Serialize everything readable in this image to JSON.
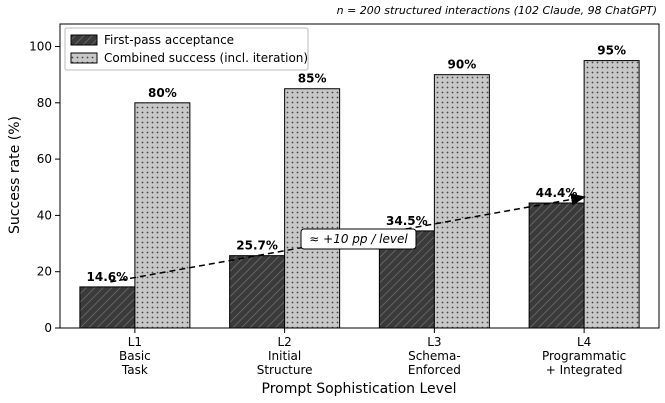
{
  "chart_data": {
    "type": "bar",
    "annotation_top": "n = 200 structured interactions (102 Claude, 98 ChatGPT)",
    "xlabel": "Prompt Sophistication Level",
    "ylabel": "Success rate (%)",
    "ylim": [
      0,
      108
    ],
    "yticks": [
      0,
      20,
      40,
      60,
      80,
      100
    ],
    "categories": [
      [
        "L1",
        "Basic",
        "Task"
      ],
      [
        "L2",
        "Initial",
        "Structure"
      ],
      [
        "L3",
        "Schema-",
        "Enforced"
      ],
      [
        "L4",
        "Programmatic",
        "+ Integrated"
      ]
    ],
    "series": [
      {
        "name": "First-pass acceptance",
        "values": [
          14.6,
          25.7,
          34.5,
          44.4
        ],
        "labels": [
          "14.6%",
          "25.7%",
          "34.5%",
          "44.4%"
        ],
        "color": "#3a3a3a",
        "pattern": "diagonal-hatch"
      },
      {
        "name": "Combined success (incl. iteration)",
        "values": [
          80,
          85,
          90,
          95
        ],
        "labels": [
          "80%",
          "85%",
          "90%",
          "95%"
        ],
        "color": "#c8c8c8",
        "pattern": "dots"
      }
    ],
    "trend_label": "≈ +10 pp / level",
    "legend_position": "top-left",
    "grid": false
  }
}
